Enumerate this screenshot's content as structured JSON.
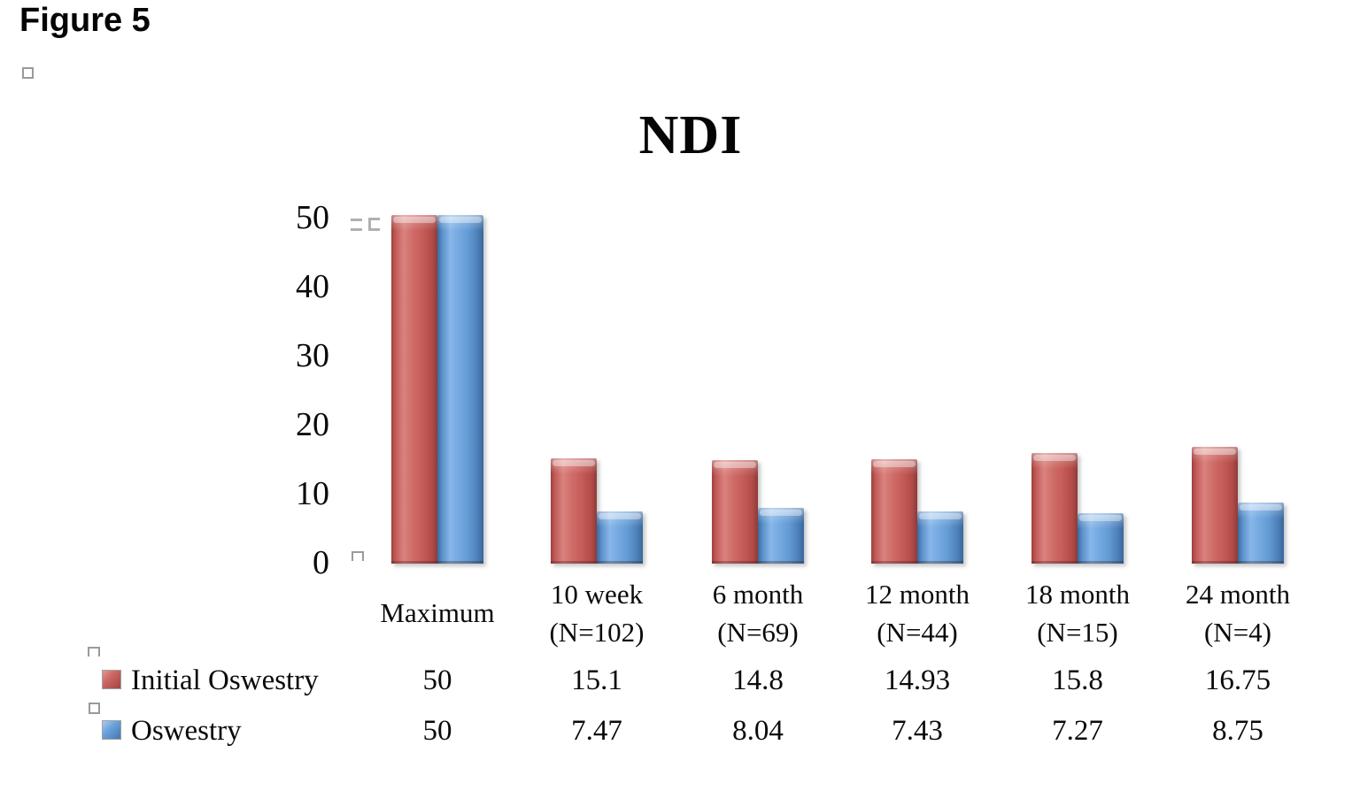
{
  "figure_label": "Figure 5",
  "chart_data": {
    "type": "bar",
    "title": "NDI",
    "categories": [
      [
        "Maximum"
      ],
      [
        "10 week",
        "(N=102)"
      ],
      [
        "6 month",
        "(N=69)"
      ],
      [
        "12 month",
        "(N=44)"
      ],
      [
        "18 month",
        "(N=15)"
      ],
      [
        "24 month",
        "(N=4)"
      ]
    ],
    "series": [
      {
        "name": "Initial Oswestry",
        "color": "#c0504d",
        "values": [
          50,
          15.1,
          14.8,
          14.93,
          15.8,
          16.75
        ],
        "display": [
          "50",
          "15.1",
          "14.8",
          "14.93",
          "15.8",
          "16.75"
        ]
      },
      {
        "name": "Oswestry",
        "color": "#4f81bd",
        "values": [
          50,
          7.47,
          8.04,
          7.43,
          7.27,
          8.75
        ],
        "display": [
          "50",
          "7.47",
          "8.04",
          "7.43",
          "7.27",
          "8.75"
        ]
      }
    ],
    "xlabel": "",
    "ylabel": "",
    "ylim": [
      0,
      50
    ],
    "yticks": [
      0,
      10,
      20,
      30,
      40,
      50
    ],
    "grid": false,
    "legend_position": "left-of-data-table",
    "data_table_shown": true
  }
}
